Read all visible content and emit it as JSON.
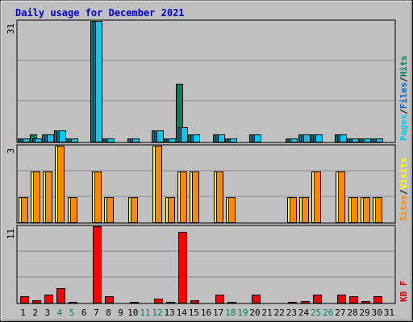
{
  "chart_data": [
    {
      "type": "bar",
      "panel": "top",
      "title": "Daily usage for December 2021",
      "y_max_label": "31",
      "ylim": [
        0,
        31
      ],
      "side_label": {
        "parts": [
          "Pages",
          "/",
          "Files",
          "/",
          "Hits"
        ],
        "colors": [
          "#00ccee",
          "#000000",
          "#0066cc",
          "#000000",
          "#008060"
        ]
      },
      "categories": [
        "1",
        "2",
        "3",
        "4",
        "5",
        "6",
        "7",
        "8",
        "9",
        "10",
        "11",
        "12",
        "13",
        "14",
        "15",
        "16",
        "17",
        "18",
        "19",
        "20",
        "21",
        "22",
        "23",
        "24",
        "25",
        "26",
        "27",
        "28",
        "29",
        "30",
        "31"
      ],
      "series": [
        {
          "name": "Hits",
          "color": "#008060",
          "values": [
            1,
            2,
            2,
            3,
            1,
            0,
            31,
            1,
            0,
            1,
            0,
            3,
            1,
            15,
            2,
            0,
            2,
            1,
            0,
            2,
            0,
            0,
            1,
            2,
            2,
            0,
            2,
            1,
            1,
            1,
            0
          ]
        },
        {
          "name": "Files",
          "color": "#0066cc",
          "values": [
            1,
            1,
            2,
            3,
            1,
            0,
            31,
            1,
            0,
            1,
            0,
            3,
            1,
            4,
            2,
            0,
            2,
            1,
            0,
            2,
            0,
            0,
            1,
            2,
            2,
            0,
            2,
            1,
            1,
            1,
            0
          ]
        },
        {
          "name": "Pages",
          "color": "#00ccee",
          "values": [
            1,
            1,
            2,
            3,
            1,
            0,
            31,
            1,
            0,
            1,
            0,
            3,
            1,
            4,
            2,
            0,
            2,
            1,
            0,
            2,
            0,
            0,
            1,
            2,
            2,
            0,
            2,
            1,
            1,
            1,
            0
          ]
        }
      ],
      "grid": true
    },
    {
      "type": "bar",
      "panel": "middle",
      "y_max_label": "3",
      "ylim": [
        0,
        3
      ],
      "side_label": {
        "parts": [
          "Sites",
          "/",
          "Visits"
        ],
        "colors": [
          "#ff8800",
          "#000000",
          "#ffff00"
        ]
      },
      "series": [
        {
          "name": "Visits",
          "color": "#ffff00",
          "values": [
            1,
            2,
            2,
            3,
            1,
            0,
            2,
            1,
            0,
            1,
            0,
            3,
            1,
            2,
            2,
            0,
            2,
            1,
            0,
            0,
            0,
            0,
            1,
            1,
            2,
            0,
            2,
            1,
            1,
            1,
            0
          ]
        },
        {
          "name": "Sites",
          "color": "#ff8800",
          "values": [
            1,
            2,
            2,
            3,
            1,
            0,
            2,
            1,
            0,
            1,
            0,
            3,
            1,
            2,
            2,
            0,
            2,
            1,
            0,
            0,
            0,
            0,
            1,
            1,
            2,
            0,
            2,
            1,
            1,
            1,
            0
          ]
        }
      ],
      "grid": true
    },
    {
      "type": "bar",
      "panel": "bottom",
      "y_max_label": "11",
      "ylim": [
        0,
        11
      ],
      "side_label": {
        "parts": [
          "KB",
          "F"
        ],
        "colors": [
          "#dd0000",
          "#dd0000"
        ]
      },
      "series": [
        {
          "name": "KB F",
          "color": "#ff0000",
          "values": [
            1.0,
            0.5,
            1.3,
            2.2,
            0.2,
            0,
            11,
            1.0,
            0,
            0.2,
            0,
            0.7,
            0.2,
            10.2,
            0.5,
            0,
            1.3,
            0.2,
            0,
            1.3,
            0,
            0,
            0.2,
            0.3,
            1.3,
            0,
            1.3,
            1.0,
            0.3,
            1.0,
            0
          ]
        }
      ],
      "grid": true
    }
  ],
  "x_tick_colors": {
    "weekend": "#008060",
    "weekday": "#000000",
    "weekend_days": [
      "4",
      "5",
      "11",
      "12",
      "18",
      "19",
      "25",
      "26"
    ]
  },
  "colors": {
    "frame_bg": "#c0c0c0",
    "plot_bg": "#c0c0c0",
    "title": "#0000cc",
    "grid": "#888888"
  }
}
